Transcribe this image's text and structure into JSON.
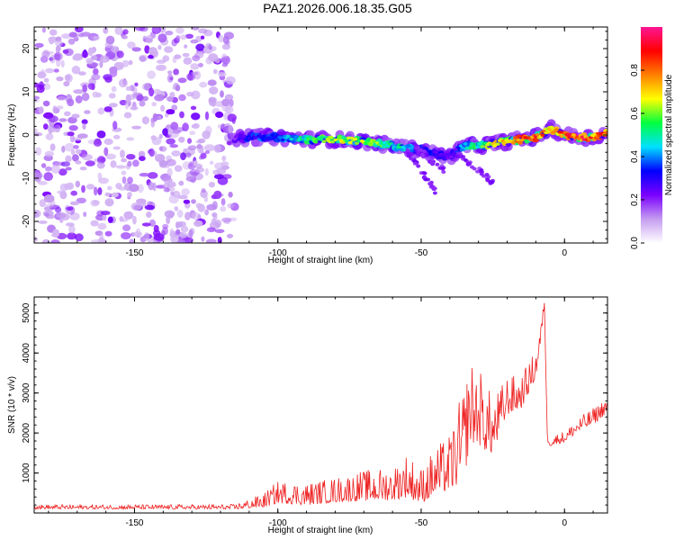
{
  "title": "PAZ1.2026.006.18.35.G05",
  "chart_data": [
    {
      "type": "heatmap",
      "title": "PAZ1.2026.006.18.35.G05",
      "xlabel": "Height of straight line (km)",
      "ylabel": "Frequency (Hz)",
      "xlim": [
        -185,
        15
      ],
      "ylim": [
        -25,
        25
      ],
      "xticks": [
        -150,
        -100,
        -50,
        0
      ],
      "xtick_labels": [
        "-150",
        "-100",
        "-50",
        "0"
      ],
      "yticks": [
        -20,
        -10,
        0,
        10,
        20
      ],
      "ytick_labels": [
        "-20",
        "-10",
        "0",
        "10",
        "20"
      ],
      "noise_region_x": [
        -185,
        -115
      ],
      "ridge": {
        "x": [
          -115,
          -110,
          -100,
          -90,
          -80,
          -70,
          -60,
          -50,
          -45,
          -40,
          -35,
          -30,
          -25,
          -20,
          -10,
          -5,
          0,
          5,
          10,
          15
        ],
        "freq_hz": [
          -1,
          -0.5,
          -0.5,
          -1,
          -1,
          -1.5,
          -2.5,
          -3.5,
          -4.5,
          -5,
          -2.5,
          -2.5,
          -2,
          -1.5,
          -0.5,
          1.5,
          0,
          -0.5,
          -0.5,
          0.5
        ],
        "amplitude": [
          0.2,
          0.35,
          0.4,
          0.55,
          0.65,
          0.7,
          0.55,
          0.4,
          0.3,
          0.25,
          0.45,
          0.6,
          0.7,
          0.85,
          0.9,
          0.75,
          0.9,
          0.95,
          0.9,
          0.85
        ]
      },
      "colorbar": {
        "label": "Normalized spectral amplitude",
        "range": [
          0,
          1
        ],
        "ticks": [
          0.0,
          0.2,
          0.4,
          0.6,
          0.8
        ],
        "tick_labels": [
          "0.0",
          "0.2",
          "0.4",
          "0.6",
          "0.8"
        ],
        "colors": [
          "#ffffff",
          "#c59cf0",
          "#7b00ff",
          "#0000ff",
          "#00e0ff",
          "#00ff40",
          "#ffff00",
          "#ff8000",
          "#ff0000",
          "#ff1493"
        ]
      }
    },
    {
      "type": "line",
      "xlabel": "Height of straight line (km)",
      "ylabel": "SNR (10 * v/v)",
      "xlim": [
        -185,
        15
      ],
      "ylim": [
        0,
        5400
      ],
      "xticks": [
        -150,
        -100,
        -50,
        0
      ],
      "xtick_labels": [
        "-150",
        "-100",
        "-50",
        "0"
      ],
      "yticks": [
        1000,
        2000,
        3000,
        4000,
        5000
      ],
      "ytick_labels": [
        "1000",
        "2000",
        "3000",
        "4000",
        "5000"
      ],
      "color": "#ee2222",
      "series": [
        {
          "name": "SNR",
          "x": [
            -185,
            -160,
            -130,
            -115,
            -105,
            -100,
            -90,
            -80,
            -70,
            -60,
            -55,
            -50,
            -45,
            -40,
            -35,
            -33,
            -30,
            -28,
            -25,
            -20,
            -15,
            -10,
            -8,
            -7,
            -6,
            -5,
            0,
            5,
            10,
            15
          ],
          "y": [
            150,
            150,
            150,
            150,
            300,
            500,
            450,
            550,
            650,
            700,
            900,
            650,
            1000,
            1200,
            1900,
            2700,
            2600,
            2400,
            2100,
            2900,
            3000,
            3700,
            4600,
            5300,
            1900,
            1800,
            1900,
            2200,
            2400,
            2700
          ],
          "spread": [
            80,
            80,
            80,
            90,
            250,
            400,
            400,
            450,
            550,
            600,
            800,
            650,
            850,
            1000,
            1700,
            1500,
            1400,
            1300,
            1000,
            700,
            600,
            500,
            300,
            100,
            150,
            200,
            200,
            250,
            300,
            300
          ]
        }
      ]
    }
  ]
}
